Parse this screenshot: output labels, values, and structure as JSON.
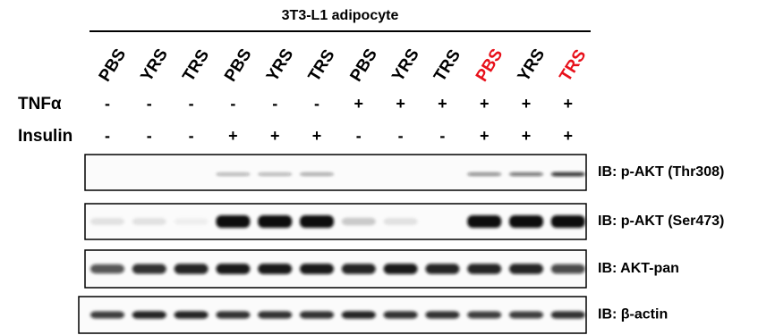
{
  "title": "3T3-L1 adipocyte",
  "lanes": [
    {
      "label": "PBS",
      "color": "#000000"
    },
    {
      "label": "YRS",
      "color": "#000000"
    },
    {
      "label": "TRS",
      "color": "#000000"
    },
    {
      "label": "PBS",
      "color": "#000000"
    },
    {
      "label": "YRS",
      "color": "#000000"
    },
    {
      "label": "TRS",
      "color": "#000000"
    },
    {
      "label": "PBS",
      "color": "#000000"
    },
    {
      "label": "YRS",
      "color": "#000000"
    },
    {
      "label": "TRS",
      "color": "#000000"
    },
    {
      "label": "PBS",
      "color": "#e8101a"
    },
    {
      "label": "YRS",
      "color": "#000000"
    },
    {
      "label": "TRS",
      "color": "#e8101a"
    }
  ],
  "conditions": [
    {
      "label": "TNFα",
      "signs": [
        "-",
        "-",
        "-",
        "-",
        "-",
        "-",
        "+",
        "+",
        "+",
        "+",
        "+",
        "+"
      ]
    },
    {
      "label": "Insulin",
      "signs": [
        "-",
        "-",
        "-",
        "+",
        "+",
        "+",
        "-",
        "-",
        "-",
        "+",
        "+",
        "+"
      ]
    }
  ],
  "blots": [
    {
      "label": "IB: p-AKT (Thr308)"
    },
    {
      "label": "IB: p-AKT (Ser473)"
    },
    {
      "label": "IB: AKT-pan"
    },
    {
      "label": "IB: β-actin"
    }
  ]
}
